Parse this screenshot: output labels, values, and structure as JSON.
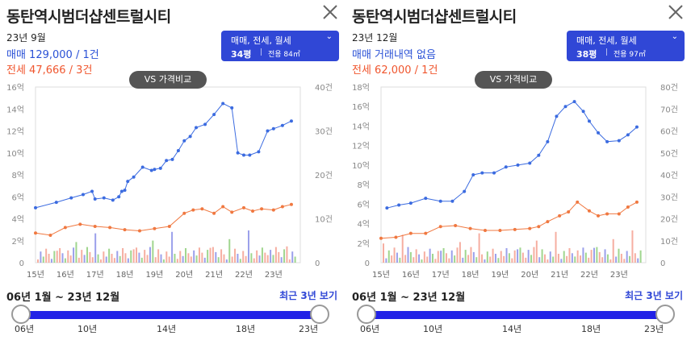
{
  "left": {
    "title": "동탄역시범더샵센트럴시티",
    "date": "23년 9월",
    "sale": "매매 129,000 / 1건",
    "rent": "전세 47,666 / 3건",
    "filter_types": "매매, 전세, 월세",
    "filter_chevron": "⌄",
    "area_main": "34평",
    "area_sep": "|",
    "area_sub": "전용 84㎡",
    "vs_button": "VS 가격비교",
    "period": "06년 1월 ~ 23년 12월",
    "recent": "최근 3년 보기",
    "slider_ticks": [
      "06년",
      "10년",
      "14년",
      "18년",
      "23년"
    ]
  },
  "right": {
    "title": "동탄역시범더샵센트럴시티",
    "date": "23년 12월",
    "sale": "매매 거래내역 없음",
    "rent": "전세 62,000 / 1건",
    "filter_types": "매매, 전세, 월세",
    "filter_chevron": "⌄",
    "area_main": "38평",
    "area_sep": "|",
    "area_sub": "전용 97㎡",
    "vs_button": "VS 가격비교",
    "period": "06년 1월 ~ 23년 12월",
    "recent": "최근 3년 보기",
    "slider_ticks": [
      "06년",
      "10년",
      "14년",
      "18년",
      "23년"
    ]
  },
  "chart_data": [
    {
      "type": "line",
      "x_labels": [
        "15년",
        "16년",
        "17년",
        "18년",
        "19년",
        "20년",
        "21년",
        "22년",
        "23년"
      ],
      "y_left_labels": [
        "16억",
        "14억",
        "12억",
        "10억",
        "8억",
        "6억",
        "4억",
        "2억",
        "0"
      ],
      "y_right_labels": [
        "40건",
        "30건",
        "20건",
        "10건",
        "0"
      ],
      "ylim_left": [
        0,
        16
      ],
      "ylim_right": [
        0,
        40
      ],
      "series": [
        {
          "kind": "sale",
          "color": "#3b6be0",
          "x": [
            15.0,
            15.7,
            16.2,
            16.6,
            16.9,
            17.0,
            17.3,
            17.6,
            17.8,
            17.9,
            18.0,
            18.1,
            18.3,
            18.6,
            18.9,
            19.0,
            19.2,
            19.4,
            19.6,
            19.8,
            20.0,
            20.2,
            20.4,
            20.7,
            21.0,
            21.3,
            21.6,
            21.8,
            22.0,
            22.2,
            22.5,
            22.8,
            23.0,
            23.3,
            23.6
          ],
          "y": [
            5.0,
            5.5,
            5.9,
            6.2,
            6.5,
            5.8,
            5.9,
            5.7,
            6.0,
            6.5,
            6.6,
            7.4,
            7.8,
            8.7,
            8.4,
            8.5,
            8.6,
            9.3,
            9.4,
            10.2,
            11.1,
            11.5,
            12.3,
            12.6,
            13.5,
            14.5,
            14.1,
            10.0,
            9.8,
            9.8,
            10.1,
            12.0,
            12.2,
            12.5,
            12.9
          ]
        },
        {
          "kind": "rent",
          "color": "#f07840",
          "x": [
            15.0,
            15.5,
            16.0,
            16.5,
            17.0,
            17.5,
            18.0,
            18.5,
            19.0,
            19.5,
            20.0,
            20.3,
            20.6,
            21.0,
            21.3,
            21.6,
            22.0,
            22.3,
            22.6,
            23.0,
            23.3,
            23.6
          ],
          "y": [
            2.7,
            2.5,
            3.2,
            3.5,
            3.3,
            3.2,
            3.0,
            2.9,
            3.1,
            3.3,
            4.5,
            4.8,
            4.9,
            4.5,
            5.1,
            4.6,
            5.0,
            4.7,
            4.9,
            4.8,
            5.1,
            5.3
          ]
        }
      ]
    },
    {
      "type": "line",
      "x_labels": [
        "15년",
        "16년",
        "17년",
        "18년",
        "19년",
        "20년",
        "21년",
        "22년",
        "23년"
      ],
      "y_left_labels": [
        "18억",
        "16억",
        "14억",
        "12억",
        "10억",
        "8억",
        "6억",
        "4억",
        "2억",
        "0"
      ],
      "y_right_labels": [
        "80건",
        "70건",
        "60건",
        "50건",
        "40건",
        "30건",
        "20건",
        "10건",
        "0"
      ],
      "ylim_left": [
        0,
        18
      ],
      "ylim_right": [
        0,
        80
      ],
      "series": [
        {
          "kind": "sale",
          "color": "#3b6be0",
          "x": [
            15.2,
            15.6,
            16.0,
            16.5,
            17.0,
            17.4,
            17.8,
            18.1,
            18.4,
            18.8,
            19.2,
            19.6,
            20.0,
            20.3,
            20.6,
            20.9,
            21.2,
            21.5,
            21.8,
            22.0,
            22.3,
            22.6,
            23.0,
            23.3,
            23.6
          ],
          "y": [
            5.6,
            5.9,
            6.1,
            6.6,
            6.3,
            6.3,
            7.3,
            9.0,
            9.2,
            9.2,
            9.8,
            10.0,
            10.2,
            11.0,
            12.4,
            15.0,
            16.0,
            16.5,
            15.5,
            14.5,
            13.3,
            12.4,
            12.5,
            13.1,
            13.9
          ]
        },
        {
          "kind": "rent",
          "color": "#f07840",
          "x": [
            15.0,
            15.5,
            16.0,
            16.5,
            17.0,
            17.5,
            18.0,
            18.5,
            19.0,
            19.5,
            20.0,
            20.3,
            20.6,
            21.0,
            21.3,
            21.6,
            22.0,
            22.3,
            22.6,
            23.0,
            23.3,
            23.6
          ],
          "y": [
            2.5,
            2.6,
            3.0,
            3.0,
            3.7,
            3.8,
            3.5,
            3.3,
            3.3,
            3.4,
            3.5,
            3.7,
            4.2,
            4.8,
            5.2,
            6.2,
            5.3,
            4.8,
            5.0,
            5.0,
            5.7,
            6.2
          ]
        }
      ]
    }
  ]
}
